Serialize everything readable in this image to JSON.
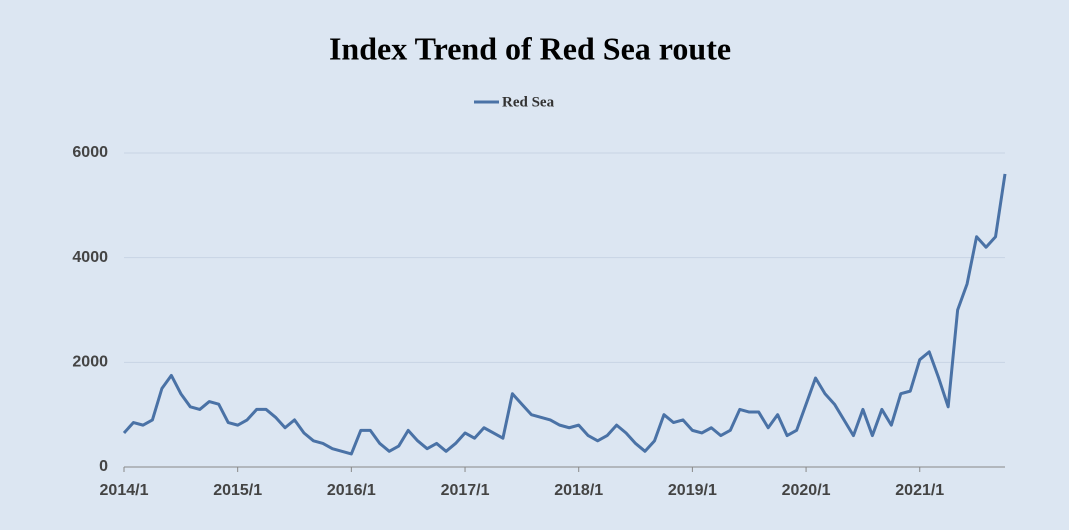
{
  "chart_data": {
    "type": "line",
    "title": "Index Trend of Red Sea route",
    "x": [
      "2014/1",
      "2014/2",
      "2014/3",
      "2014/4",
      "2014/5",
      "2014/6",
      "2014/7",
      "2014/8",
      "2014/9",
      "2014/10",
      "2014/11",
      "2014/12",
      "2015/1",
      "2015/2",
      "2015/3",
      "2015/4",
      "2015/5",
      "2015/6",
      "2015/7",
      "2015/8",
      "2015/9",
      "2015/10",
      "2015/11",
      "2015/12",
      "2016/1",
      "2016/2",
      "2016/3",
      "2016/4",
      "2016/5",
      "2016/6",
      "2016/7",
      "2016/8",
      "2016/9",
      "2016/10",
      "2016/11",
      "2016/12",
      "2017/1",
      "2017/2",
      "2017/3",
      "2017/4",
      "2017/5",
      "2017/6",
      "2017/7",
      "2017/8",
      "2017/9",
      "2017/10",
      "2017/11",
      "2017/12",
      "2018/1",
      "2018/2",
      "2018/3",
      "2018/4",
      "2018/5",
      "2018/6",
      "2018/7",
      "2018/8",
      "2018/9",
      "2018/10",
      "2018/11",
      "2018/12",
      "2019/1",
      "2019/2",
      "2019/3",
      "2019/4",
      "2019/5",
      "2019/6",
      "2019/7",
      "2019/8",
      "2019/9",
      "2019/10",
      "2019/11",
      "2019/12",
      "2020/1",
      "2020/2",
      "2020/3",
      "2020/4",
      "2020/5",
      "2020/6",
      "2020/7",
      "2020/8",
      "2020/9",
      "2020/10",
      "2020/11",
      "2020/12",
      "2021/1",
      "2021/2",
      "2021/3",
      "2021/4",
      "2021/5",
      "2021/6",
      "2021/7",
      "2021/8",
      "2021/9",
      "2021/10"
    ],
    "series": [
      {
        "name": "Red Sea",
        "color": "#4a72a6",
        "values": [
          650,
          850,
          800,
          900,
          1500,
          1750,
          1400,
          1150,
          1100,
          1250,
          1200,
          850,
          800,
          900,
          1100,
          1100,
          950,
          750,
          900,
          650,
          500,
          450,
          350,
          300,
          250,
          700,
          700,
          450,
          300,
          400,
          700,
          500,
          350,
          450,
          300,
          450,
          650,
          550,
          750,
          650,
          550,
          1400,
          1200,
          1000,
          950,
          900,
          800,
          750,
          800,
          600,
          500,
          600,
          800,
          650,
          450,
          300,
          500,
          1000,
          850,
          900,
          700,
          650,
          750,
          600,
          700,
          1100,
          1050,
          1050,
          750,
          1000,
          600,
          700,
          1200,
          1700,
          1400,
          1200,
          900,
          600,
          1100,
          600,
          1100,
          800,
          1400,
          1450,
          2050,
          2200,
          1700,
          1150,
          3000,
          3500,
          4400,
          4200,
          4400,
          5600
        ]
      }
    ],
    "xlim": [
      "2014/1",
      "2021/10"
    ],
    "xticks": [
      "2014/1",
      "2015/1",
      "2016/1",
      "2017/1",
      "2018/1",
      "2019/1",
      "2020/1",
      "2021/1"
    ],
    "ylim": [
      0,
      6000
    ],
    "yticks": [
      0,
      2000,
      4000,
      6000
    ],
    "grid": true
  }
}
